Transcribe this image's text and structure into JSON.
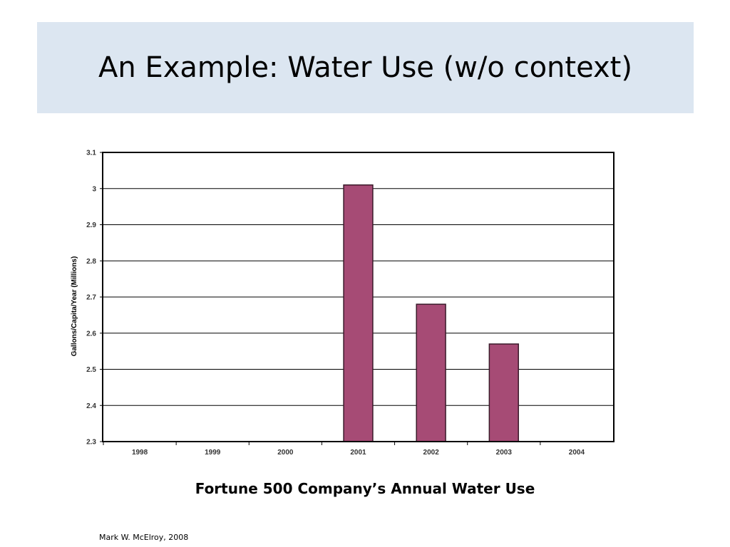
{
  "slide": {
    "title": "An Example: Water Use (w/o context)",
    "caption": "Fortune 500 Company’s Annual Water Use",
    "credit": "Mark W. McElroy, 2008"
  },
  "chart_data": {
    "type": "bar",
    "title": "",
    "xlabel": "",
    "ylabel": "Gallons/Capita/Year (Millions)",
    "categories": [
      "1998",
      "1999",
      "2000",
      "2001",
      "2002",
      "2003",
      "2004"
    ],
    "values": [
      null,
      null,
      null,
      3.01,
      2.68,
      2.57,
      null
    ],
    "ylim": [
      2.3,
      3.1
    ],
    "yticks": [
      "2.3",
      "2.4",
      "2.5",
      "2.6",
      "2.7",
      "2.8",
      "2.9",
      "3",
      "3.1"
    ],
    "grid": true,
    "legend": "none",
    "bar_color": "#a64b75",
    "bar_edge_color": "#3a1a2a"
  }
}
